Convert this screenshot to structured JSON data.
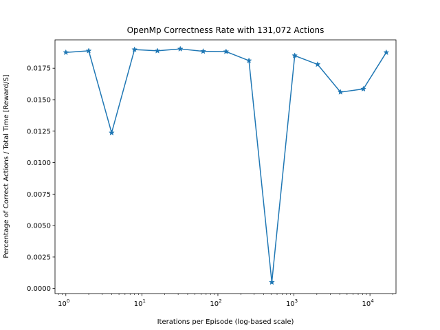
{
  "chart_data": {
    "type": "line",
    "title": "OpenMp Correctness Rate with 131,072 Actions",
    "xlabel": "Iterations per Episode (log-based scale)",
    "ylabel": "Percentage of Correct Actions / Total Time [Reward/S]",
    "xscale": "log",
    "xlim": [
      0.72,
      22000
    ],
    "ylim": [
      -0.0004,
      0.01975
    ],
    "grid": false,
    "marker": "star",
    "line_color": "#1f77b4",
    "x_ticks": [
      {
        "base": "10",
        "exp": "0"
      },
      {
        "base": "10",
        "exp": "1"
      },
      {
        "base": "10",
        "exp": "2"
      },
      {
        "base": "10",
        "exp": "3"
      },
      {
        "base": "10",
        "exp": "4"
      }
    ],
    "y_ticks": [
      "0.0000",
      "0.0025",
      "0.0050",
      "0.0075",
      "0.0100",
      "0.0125",
      "0.0150",
      "0.0175"
    ],
    "series": [
      {
        "x": [
          1,
          2,
          4,
          8,
          16,
          32,
          64,
          128,
          256,
          512,
          1024,
          2048,
          4096,
          8192,
          16384
        ],
        "y": [
          0.01875,
          0.01888,
          0.01237,
          0.01898,
          0.01888,
          0.01903,
          0.01884,
          0.01882,
          0.0181,
          0.0005,
          0.0185,
          0.0178,
          0.0156,
          0.01585,
          0.01875
        ]
      }
    ]
  }
}
